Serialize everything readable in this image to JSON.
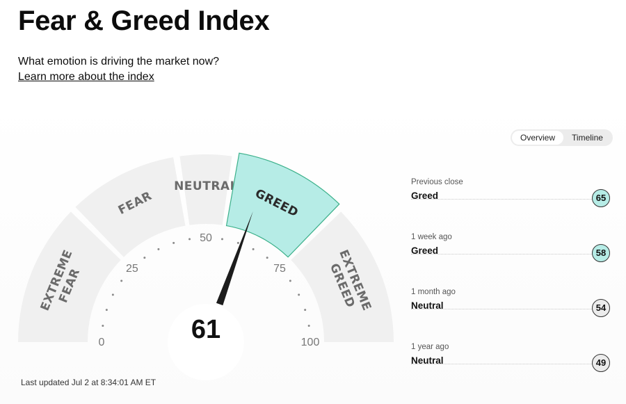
{
  "page": {
    "title": "Fear & Greed Index",
    "subtitle": "What emotion is driving the market now?",
    "learn_more": "Learn more about the index"
  },
  "toggle": {
    "overview": "Overview",
    "timeline": "Timeline",
    "active": "Overview"
  },
  "gauge": {
    "value": 61,
    "active_zone": "GREED",
    "zones": [
      {
        "id": "extreme-fear",
        "lines": [
          "EXTREME",
          "FEAR"
        ],
        "from": 0,
        "to": 25
      },
      {
        "id": "fear",
        "lines": [
          "FEAR"
        ],
        "from": 25,
        "to": 45
      },
      {
        "id": "neutral",
        "lines": [
          "NEUTRAL"
        ],
        "from": 45,
        "to": 55
      },
      {
        "id": "greed",
        "lines": [
          "GREED"
        ],
        "from": 55,
        "to": 75
      },
      {
        "id": "extreme-greed",
        "lines": [
          "EXTREME",
          "GREED"
        ],
        "from": 75,
        "to": 100
      }
    ],
    "ticks": [
      "0",
      "25",
      "50",
      "75",
      "100"
    ],
    "colors": {
      "zone": "#f0f0f0",
      "active": "#b6ece6",
      "active_border": "#3bb08a",
      "needle": "#1c1c1c"
    }
  },
  "history": [
    {
      "label": "Previous close",
      "status": "Greed",
      "value": "65",
      "color": "#b6ece6"
    },
    {
      "label": "1 week ago",
      "status": "Greed",
      "value": "58",
      "color": "#b6ece6"
    },
    {
      "label": "1 month ago",
      "status": "Neutral",
      "value": "54",
      "color": "#ececec"
    },
    {
      "label": "1 year ago",
      "status": "Neutral",
      "value": "49",
      "color": "#ececec"
    }
  ],
  "last_updated": "Last updated Jul 2 at 8:34:01 AM ET"
}
